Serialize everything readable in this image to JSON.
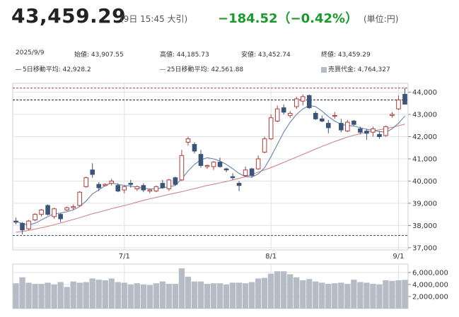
{
  "header": {
    "price": "43,459.29",
    "time": "(9日 15:45 大引)",
    "change": "−184.52（−0.42%）",
    "unit": "(単位:円)"
  },
  "info": {
    "date": "2025/9/9",
    "open": "始値: 43,907.55",
    "high": "高値: 44,185.73",
    "low": "安値: 43,452.74",
    "close": "終値: 43,459.29"
  },
  "legend": {
    "ma5": "5日移動平均: 42,928.2",
    "ma25": "25日移動平均: 42,561.88",
    "volume": "売買代金: 4,764,327"
  },
  "colors": {
    "up": "#b23a3a",
    "down": "#3b5478",
    "ma5": "#6a82b4",
    "ma25": "#d0858a",
    "volume": "#b5bcc6",
    "grid": "#e2e2e2",
    "change": "#1a9a2a"
  },
  "chart_data": [
    {
      "type": "candlestick",
      "ylim": [
        36900,
        44400
      ],
      "yticks": [
        "37,000",
        "38,000",
        "39,000",
        "40,000",
        "41,000",
        "42,000",
        "43,000",
        "44,000"
      ],
      "ytick_values": [
        37000,
        38000,
        39000,
        40000,
        41000,
        42000,
        43000,
        44000
      ],
      "xticks": [
        {
          "label": "7/1",
          "index": 17
        },
        {
          "label": "8/1",
          "index": 40
        },
        {
          "label": "9/1",
          "index": 60
        }
      ],
      "reference_lines": [
        44185.73,
        43650,
        37550
      ],
      "ohlc": [
        [
          38200,
          38350,
          38050,
          38150
        ],
        [
          38100,
          38150,
          37600,
          37800
        ],
        [
          37850,
          38250,
          37800,
          38200
        ],
        [
          38250,
          38550,
          38200,
          38500
        ],
        [
          38500,
          38750,
          38400,
          38700
        ],
        [
          38900,
          38950,
          38450,
          38500
        ],
        [
          38400,
          38800,
          38300,
          38750
        ],
        [
          38500,
          38550,
          38150,
          38300
        ],
        [
          38700,
          38850,
          38650,
          38800
        ],
        [
          38800,
          38950,
          38700,
          38850
        ],
        [
          38900,
          39550,
          38850,
          39500
        ],
        [
          39750,
          40200,
          39700,
          40150
        ],
        [
          40500,
          40800,
          40150,
          40300
        ],
        [
          39850,
          39950,
          39550,
          39700
        ],
        [
          39800,
          39900,
          39750,
          39850
        ],
        [
          39900,
          40100,
          39800,
          40000
        ],
        [
          39800,
          39900,
          39500,
          39550
        ],
        [
          39600,
          39800,
          39450,
          39750
        ],
        [
          39900,
          40050,
          39700,
          39850
        ],
        [
          39650,
          39800,
          39550,
          39750
        ],
        [
          39800,
          39900,
          39500,
          39600
        ],
        [
          39550,
          39650,
          39450,
          39600
        ],
        [
          39550,
          39800,
          39500,
          39750
        ],
        [
          39900,
          40050,
          39650,
          39700
        ],
        [
          39650,
          40100,
          39550,
          40050
        ],
        [
          40150,
          40200,
          39800,
          39850
        ],
        [
          40050,
          41400,
          40000,
          41150
        ],
        [
          41750,
          42000,
          41600,
          41900
        ],
        [
          41650,
          41750,
          41250,
          41350
        ],
        [
          41200,
          41400,
          40600,
          40700
        ],
        [
          40650,
          40750,
          40550,
          40700
        ],
        [
          40650,
          40900,
          40500,
          40850
        ],
        [
          40850,
          41050,
          40600,
          40650
        ],
        [
          40550,
          40600,
          40400,
          40500
        ],
        [
          40200,
          40350,
          40050,
          40150
        ],
        [
          39900,
          40000,
          39550,
          39800
        ],
        [
          40250,
          40650,
          40200,
          40500
        ],
        [
          40550,
          40600,
          40150,
          40250
        ],
        [
          40550,
          41150,
          40500,
          41000
        ],
        [
          41300,
          42000,
          41250,
          41900
        ],
        [
          41900,
          43000,
          41850,
          42850
        ],
        [
          42700,
          43400,
          42650,
          43250
        ],
        [
          43300,
          43450,
          43000,
          43100
        ],
        [
          42950,
          43150,
          42850,
          43050
        ],
        [
          43350,
          43800,
          43250,
          43700
        ],
        [
          43600,
          43900,
          43400,
          43800
        ],
        [
          43850,
          43900,
          43250,
          43300
        ],
        [
          43050,
          43150,
          42750,
          42800
        ],
        [
          42800,
          42950,
          42650,
          42700
        ],
        [
          42600,
          42750,
          42150,
          42400
        ],
        [
          42950,
          43100,
          42800,
          42950
        ],
        [
          42600,
          42800,
          42200,
          42300
        ],
        [
          42250,
          42750,
          42200,
          42650
        ],
        [
          42700,
          42750,
          42500,
          42550
        ],
        [
          42350,
          42450,
          42100,
          42200
        ],
        [
          42250,
          42350,
          41850,
          42150
        ],
        [
          42200,
          42450,
          42000,
          42350
        ],
        [
          42100,
          42250,
          41900,
          42000
        ],
        [
          42050,
          42500,
          42000,
          42450
        ],
        [
          42950,
          43100,
          42850,
          43000
        ],
        [
          43250,
          43850,
          43200,
          43650
        ],
        [
          43907,
          44186,
          43453,
          43459
        ]
      ],
      "ma5": [
        38180,
        38090,
        38030,
        38100,
        38250,
        38400,
        38520,
        38560,
        38620,
        38700,
        38850,
        39100,
        39420,
        39600,
        39800,
        39920,
        39850,
        39800,
        39780,
        39720,
        39680,
        39640,
        39660,
        39690,
        39750,
        39800,
        40100,
        40450,
        40750,
        40960,
        41050,
        41000,
        40900,
        40750,
        40550,
        40340,
        40200,
        40180,
        40320,
        40600,
        41100,
        41650,
        42200,
        42650,
        43000,
        43250,
        43400,
        43350,
        43150,
        42900,
        42700,
        42550,
        42500,
        42480,
        42400,
        42330,
        42280,
        42230,
        42200,
        42350,
        42600,
        42928
      ],
      "ma25": [
        37700,
        37730,
        37780,
        37840,
        37900,
        37960,
        38030,
        38110,
        38190,
        38270,
        38350,
        38440,
        38530,
        38600,
        38680,
        38760,
        38830,
        38900,
        38970,
        39050,
        39130,
        39200,
        39260,
        39330,
        39400,
        39460,
        39520,
        39590,
        39660,
        39730,
        39800,
        39860,
        39920,
        39980,
        40050,
        40120,
        40200,
        40300,
        40400,
        40500,
        40610,
        40720,
        40840,
        40960,
        41080,
        41200,
        41320,
        41440,
        41560,
        41670,
        41780,
        41880,
        41980,
        42060,
        42130,
        42200,
        42260,
        42310,
        42360,
        42420,
        42490,
        42562
      ]
    },
    {
      "type": "bar",
      "name": "売買代金",
      "ylim": [
        0,
        7400000
      ],
      "yticks": [
        "2,000,000",
        "4,000,000",
        "6,000,000"
      ],
      "ytick_values": [
        2000000,
        4000000,
        6000000
      ],
      "values": [
        4200000,
        5200000,
        4300000,
        4100000,
        4100000,
        4300000,
        4000000,
        4400000,
        3600000,
        4500000,
        4300000,
        4400000,
        5000000,
        4800000,
        4700000,
        5000000,
        4400000,
        4300000,
        4000000,
        4200000,
        4000000,
        3900000,
        4200000,
        4500000,
        4100000,
        4100000,
        6700000,
        5300000,
        4500000,
        4500000,
        4100000,
        4200000,
        4200000,
        4000000,
        4300000,
        4300000,
        4200000,
        4400000,
        5000000,
        5100000,
        5800000,
        6200000,
        6200000,
        5700000,
        5200000,
        4700000,
        4900000,
        4500000,
        4300000,
        4100000,
        4200000,
        4300000,
        4100000,
        4800000,
        4400000,
        4300000,
        4100000,
        4000000,
        4700000,
        4600000,
        4700000,
        4764327
      ]
    }
  ]
}
